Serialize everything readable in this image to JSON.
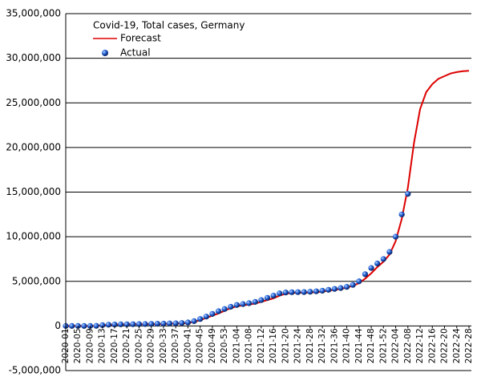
{
  "chart_data": {
    "type": "line",
    "title": "Covid-19, Total cases, Germany",
    "categories": [
      "2020-01",
      null,
      "2020-05",
      null,
      "2020-09",
      null,
      "2020-13",
      null,
      "2020-17",
      null,
      "2020-21",
      null,
      "2020-25",
      null,
      "2020-29",
      null,
      "2020-33",
      null,
      "2020-37",
      null,
      "2020-41",
      null,
      "2020-45",
      null,
      "2020-49",
      null,
      "2020-53",
      null,
      "2021-04",
      null,
      "2021-08",
      null,
      "2021-12",
      null,
      "2021-16",
      null,
      "2021-20",
      null,
      "2021-24",
      null,
      "2021-28",
      null,
      "2021-32",
      null,
      "2021-36",
      null,
      "2021-40",
      null,
      "2021-44",
      null,
      "2021-48",
      null,
      "2021-52",
      null,
      "2022-04",
      null,
      "2022-08",
      null,
      "2022-12",
      null,
      "2022-16",
      null,
      "2022-20",
      null,
      "2022-24",
      null,
      "2022-28"
    ],
    "series": [
      {
        "name": "Forecast",
        "color": "#dd0000",
        "style": "line",
        "values": [
          0,
          0,
          0,
          0,
          0,
          10000,
          80000,
          130000,
          160000,
          175000,
          180000,
          190000,
          195000,
          200000,
          210000,
          215000,
          230000,
          245000,
          265000,
          290000,
          340000,
          450000,
          650000,
          900000,
          1150000,
          1400000,
          1700000,
          2000000,
          2200000,
          2300000,
          2400000,
          2500000,
          2700000,
          2900000,
          3100000,
          3400000,
          3600000,
          3700000,
          3720000,
          3730000,
          3750000,
          3780000,
          3850000,
          3950000,
          4050000,
          4150000,
          4300000,
          4500000,
          4800000,
          5300000,
          5900000,
          6600000,
          7200000,
          8000000,
          9500000,
          12000000,
          15500000,
          20500000,
          24300000,
          26200000,
          27100000,
          27700000,
          28000000,
          28300000,
          28450000,
          28550000,
          28600000
        ]
      },
      {
        "name": "Actual",
        "color": "#1f5fd6",
        "style": "markers",
        "values": [
          0,
          0,
          0,
          0,
          0,
          10000,
          90000,
          140000,
          165000,
          180000,
          185000,
          195000,
          205000,
          215000,
          230000,
          250000,
          265000,
          280000,
          300000,
          330000,
          390000,
          540000,
          780000,
          1050000,
          1350000,
          1650000,
          1900000,
          2150000,
          2350000,
          2450000,
          2550000,
          2700000,
          2900000,
          3150000,
          3400000,
          3650000,
          3750000,
          3780000,
          3790000,
          3800000,
          3830000,
          3880000,
          3950000,
          4050000,
          4150000,
          4250000,
          4380000,
          4600000,
          5000000,
          5800000,
          6500000,
          7000000,
          7500000,
          8300000,
          10000000,
          12500000,
          14800000,
          null,
          null,
          null,
          null,
          null,
          null,
          null,
          null,
          null,
          null
        ]
      }
    ],
    "ylim": [
      -5000000,
      35000000
    ],
    "yticks": [
      {
        "value": -5000000,
        "label": "-5,000,000"
      },
      0,
      {
        "value": 5000000,
        "label": "5,000,000"
      },
      {
        "value": 10000000,
        "label": "10,000,000"
      },
      {
        "value": 15000000,
        "label": "15,000,000"
      },
      {
        "value": 20000000,
        "label": "20,000,000"
      },
      {
        "value": 25000000,
        "label": "25,000,000"
      },
      {
        "value": 30000000,
        "label": "30,000,000"
      },
      {
        "value": 35000000,
        "label": "35,000,000"
      }
    ],
    "grid": true,
    "legend": "top-left"
  }
}
